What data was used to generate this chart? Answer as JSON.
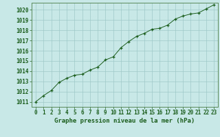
{
  "x": [
    0,
    1,
    2,
    3,
    4,
    5,
    6,
    7,
    8,
    9,
    10,
    11,
    12,
    13,
    14,
    15,
    16,
    17,
    18,
    19,
    20,
    21,
    22,
    23
  ],
  "y": [
    1011.0,
    1011.6,
    1012.1,
    1012.9,
    1013.3,
    1013.6,
    1013.7,
    1014.1,
    1014.4,
    1015.1,
    1015.4,
    1016.3,
    1016.9,
    1017.4,
    1017.7,
    1018.1,
    1018.2,
    1018.5,
    1019.1,
    1019.4,
    1019.6,
    1019.7,
    1020.1,
    1020.5
  ],
  "xlim": [
    -0.5,
    23.5
  ],
  "ylim": [
    1010.5,
    1020.7
  ],
  "yticks": [
    1011,
    1012,
    1013,
    1014,
    1015,
    1016,
    1017,
    1018,
    1019,
    1020
  ],
  "xticks": [
    0,
    1,
    2,
    3,
    4,
    5,
    6,
    7,
    8,
    9,
    10,
    11,
    12,
    13,
    14,
    15,
    16,
    17,
    18,
    19,
    20,
    21,
    22,
    23
  ],
  "xlabel": "Graphe pression niveau de la mer (hPa)",
  "line_color": "#1a5c1a",
  "marker": "+",
  "bg_color": "#c8e8e8",
  "grid_color": "#a0c8c8",
  "tick_label_color": "#1a5c1a",
  "xlabel_color": "#1a5c1a",
  "xlabel_fontsize": 6.5,
  "tick_fontsize": 5.5
}
